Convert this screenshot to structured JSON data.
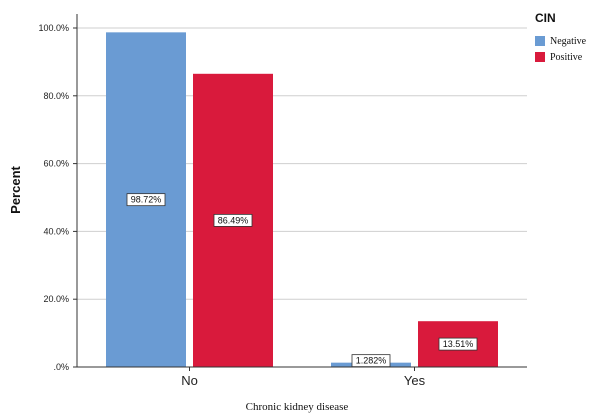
{
  "chart_data": {
    "type": "bar",
    "categories": [
      "No",
      "Yes"
    ],
    "series": [
      {
        "name": "Negative",
        "values": [
          98.72,
          1.282
        ],
        "labels": [
          "98.72%",
          "1.282%"
        ],
        "color": "#6A9BD3"
      },
      {
        "name": "Positive",
        "values": [
          86.49,
          13.51
        ],
        "labels": [
          "86.49%",
          "13.51%"
        ],
        "color": "#D91A3C"
      }
    ],
    "xlabel": "Chronic kidney disease",
    "ylabel": "Percent",
    "ylim": [
      0,
      100
    ],
    "yticks": [
      0,
      20,
      40,
      60,
      80,
      100
    ],
    "ytick_labels": [
      ".0%",
      "20.0%",
      "40.0%",
      "60.0%",
      "80.0%",
      "100.0%"
    ],
    "grid": true,
    "legend": {
      "title": "CIN",
      "placement": "top-right"
    }
  }
}
